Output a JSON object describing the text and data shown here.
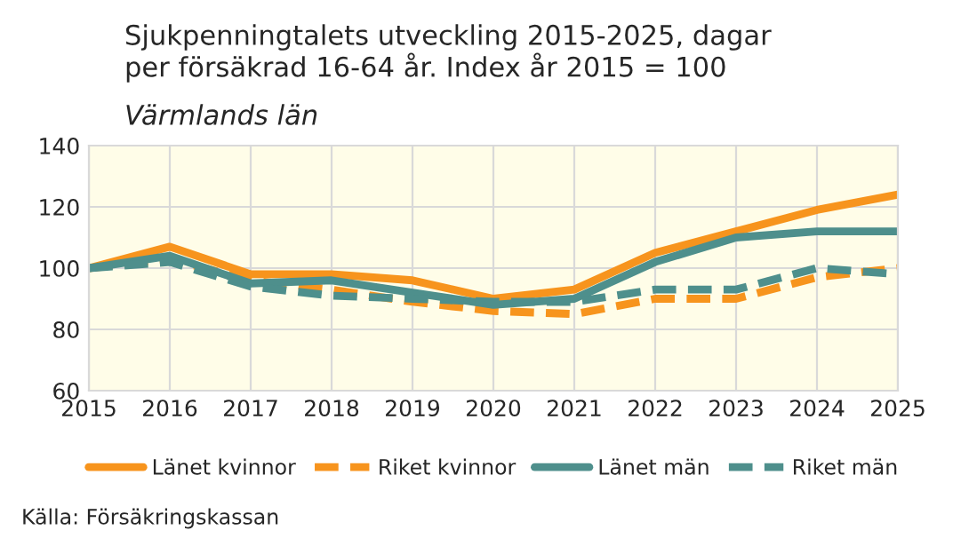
{
  "chart_data": {
    "type": "line",
    "title": "Sjukpenningtalets utveckling 2015-2025, dagar\nper försäkrad 16-64 år. Index år 2015 = 100",
    "subtitle": "Värmlands län",
    "x": [
      2015,
      2016,
      2017,
      2018,
      2019,
      2020,
      2021,
      2022,
      2023,
      2024,
      2025
    ],
    "series": [
      {
        "name": "Länet kvinnor",
        "color": "#f7941d",
        "line_style": "solid",
        "values": [
          100,
          107,
          98,
          98,
          96,
          90,
          93,
          105,
          112,
          119,
          124
        ]
      },
      {
        "name": "Riket kvinnor",
        "color": "#f7941d",
        "line_style": "dashed",
        "values": [
          100,
          103,
          96,
          93,
          89,
          86,
          85,
          90,
          90,
          97,
          100
        ]
      },
      {
        "name": "Länet män",
        "color": "#4e8f8c",
        "line_style": "solid",
        "values": [
          100,
          104,
          95,
          96,
          92,
          88,
          90,
          102,
          110,
          112,
          112
        ]
      },
      {
        "name": "Riket män",
        "color": "#4e8f8c",
        "line_style": "dashed",
        "values": [
          100,
          102,
          94,
          91,
          90,
          89,
          89,
          93,
          93,
          100,
          98
        ]
      }
    ],
    "xlim": [
      2015,
      2025
    ],
    "xticks": [
      2015,
      2016,
      2017,
      2018,
      2019,
      2020,
      2021,
      2022,
      2023,
      2024,
      2025
    ],
    "ylim": [
      60,
      140
    ],
    "yticks": [
      60,
      80,
      100,
      120,
      140
    ],
    "grid": true,
    "legend": "bottom",
    "marker": "none",
    "annotations": [
      "Källa: Försäkringskassan"
    ]
  }
}
